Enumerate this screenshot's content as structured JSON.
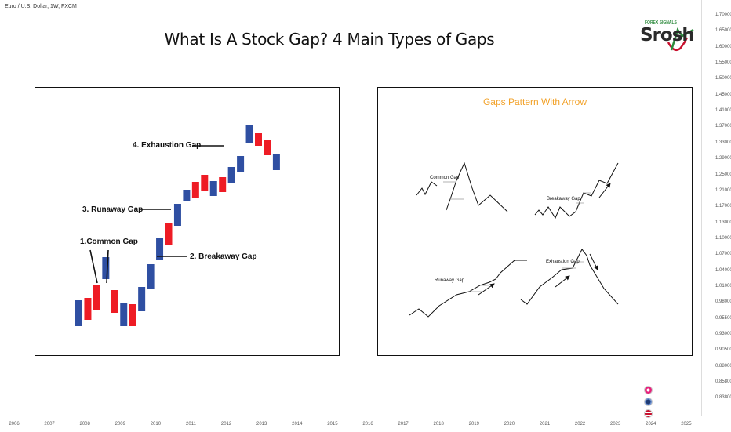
{
  "symbol": "Euro / U.S. Dollar, 1W, FXCM",
  "title": "What Is A Stock Gap? 4 Main Types of Gaps",
  "logo": {
    "tagline": "FOREX SIGNALS",
    "word": "Srosh"
  },
  "y_axis_ticks": [
    "1.70000",
    "1.65000",
    "1.60000",
    "1.55000",
    "1.50000",
    "1.45000",
    "1.41000",
    "1.37000",
    "1.33000",
    "1.29000",
    "1.25000",
    "1.21000",
    "1.17000",
    "1.13000",
    "1.10000",
    "1.07000",
    "1.04000",
    "1.01000",
    "0.98000",
    "0.95500",
    "0.93000",
    "0.90500",
    "0.88000",
    "0.85800",
    "0.83800"
  ],
  "x_axis_ticks": [
    "2006",
    "2007",
    "2008",
    "2009",
    "2010",
    "2011",
    "2012",
    "2013",
    "2014",
    "2015",
    "2016",
    "2017",
    "2018",
    "2019",
    "2020",
    "2021",
    "2022",
    "2023",
    "2024",
    "2025"
  ],
  "colors": {
    "bull": "#2f4fa2",
    "bear": "#ee1c25",
    "accent": "#f2a22a"
  },
  "chart_data": [
    {
      "type": "bar",
      "labels": [
        "1.Common Gap",
        "2. Breakaway Gap",
        "3. Runaway Gap",
        "4. Exhaustion Gap"
      ],
      "candles": [
        {
          "dir": "up",
          "lo": 0,
          "hi": 33
        },
        {
          "dir": "down",
          "lo": 8,
          "hi": 36
        },
        {
          "dir": "down",
          "lo": 21,
          "hi": 52
        },
        {
          "dir": "up",
          "lo": 60,
          "hi": 88
        },
        {
          "dir": "down",
          "lo": 17,
          "hi": 46
        },
        {
          "dir": "up",
          "lo": 0,
          "hi": 30
        },
        {
          "dir": "down",
          "lo": 0,
          "hi": 28
        },
        {
          "dir": "up",
          "lo": 19,
          "hi": 50
        },
        {
          "dir": "up",
          "lo": 48,
          "hi": 79
        },
        {
          "dir": "up",
          "lo": 84,
          "hi": 112
        },
        {
          "dir": "down",
          "lo": 104,
          "hi": 132
        },
        {
          "dir": "up",
          "lo": 128,
          "hi": 156
        },
        {
          "dir": "up",
          "lo": 159,
          "hi": 174
        },
        {
          "dir": "down",
          "lo": 163,
          "hi": 184
        },
        {
          "dir": "down",
          "lo": 173,
          "hi": 193
        },
        {
          "dir": "up",
          "lo": 166,
          "hi": 185
        },
        {
          "dir": "down",
          "lo": 171,
          "hi": 190
        },
        {
          "dir": "up",
          "lo": 182,
          "hi": 203
        },
        {
          "dir": "up",
          "lo": 196,
          "hi": 217
        },
        {
          "dir": "up",
          "lo": 234,
          "hi": 257
        },
        {
          "dir": "down",
          "lo": 230,
          "hi": 246
        },
        {
          "dir": "down",
          "lo": 218,
          "hi": 238
        },
        {
          "dir": "up",
          "lo": 199,
          "hi": 219
        }
      ]
    },
    {
      "type": "line",
      "title": "Gaps Pattern With Arrow",
      "labels": [
        "Common Gap",
        "Breakaway Gap",
        "Runaway Gap",
        "Exhaustion Gap"
      ]
    }
  ]
}
